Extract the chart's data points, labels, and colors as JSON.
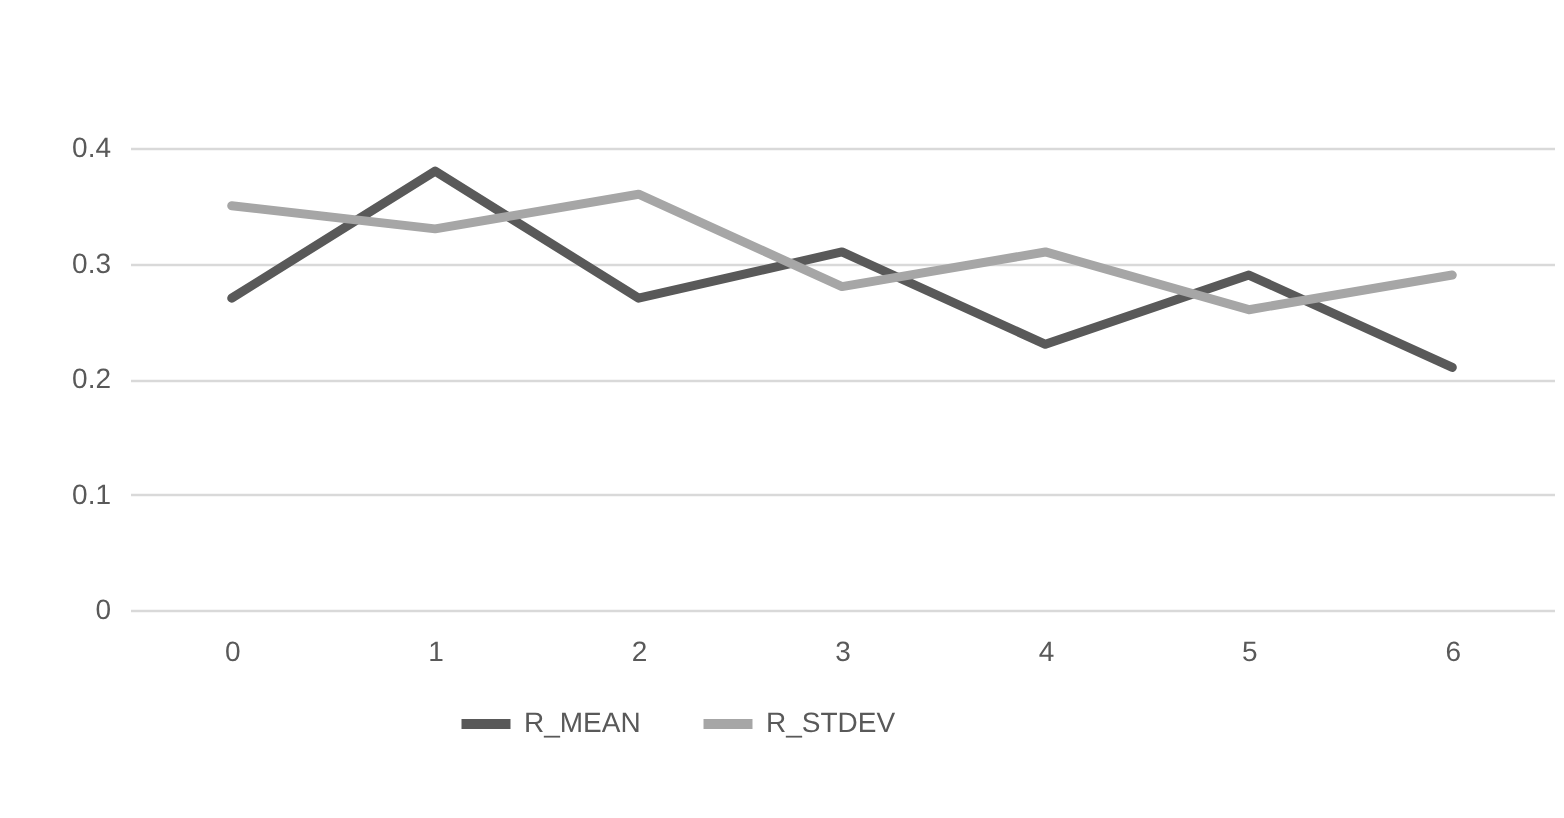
{
  "chart_data": {
    "type": "line",
    "categories": [
      "0",
      "1",
      "2",
      "3",
      "4",
      "5",
      "6"
    ],
    "series": [
      {
        "name": "R_MEAN",
        "color": "#595959",
        "values": [
          0.27,
          0.38,
          0.27,
          0.31,
          0.23,
          0.29,
          0.21
        ]
      },
      {
        "name": "R_STDEV",
        "color": "#a6a6a6",
        "values": [
          0.35,
          0.33,
          0.36,
          0.28,
          0.31,
          0.26,
          0.29
        ]
      }
    ],
    "ylim": [
      0,
      0.4
    ],
    "yticks": [
      0,
      0.1,
      0.2,
      0.3,
      0.4
    ],
    "grid": "y",
    "legend": "bottom",
    "marker": "none",
    "line_style": "solid"
  }
}
